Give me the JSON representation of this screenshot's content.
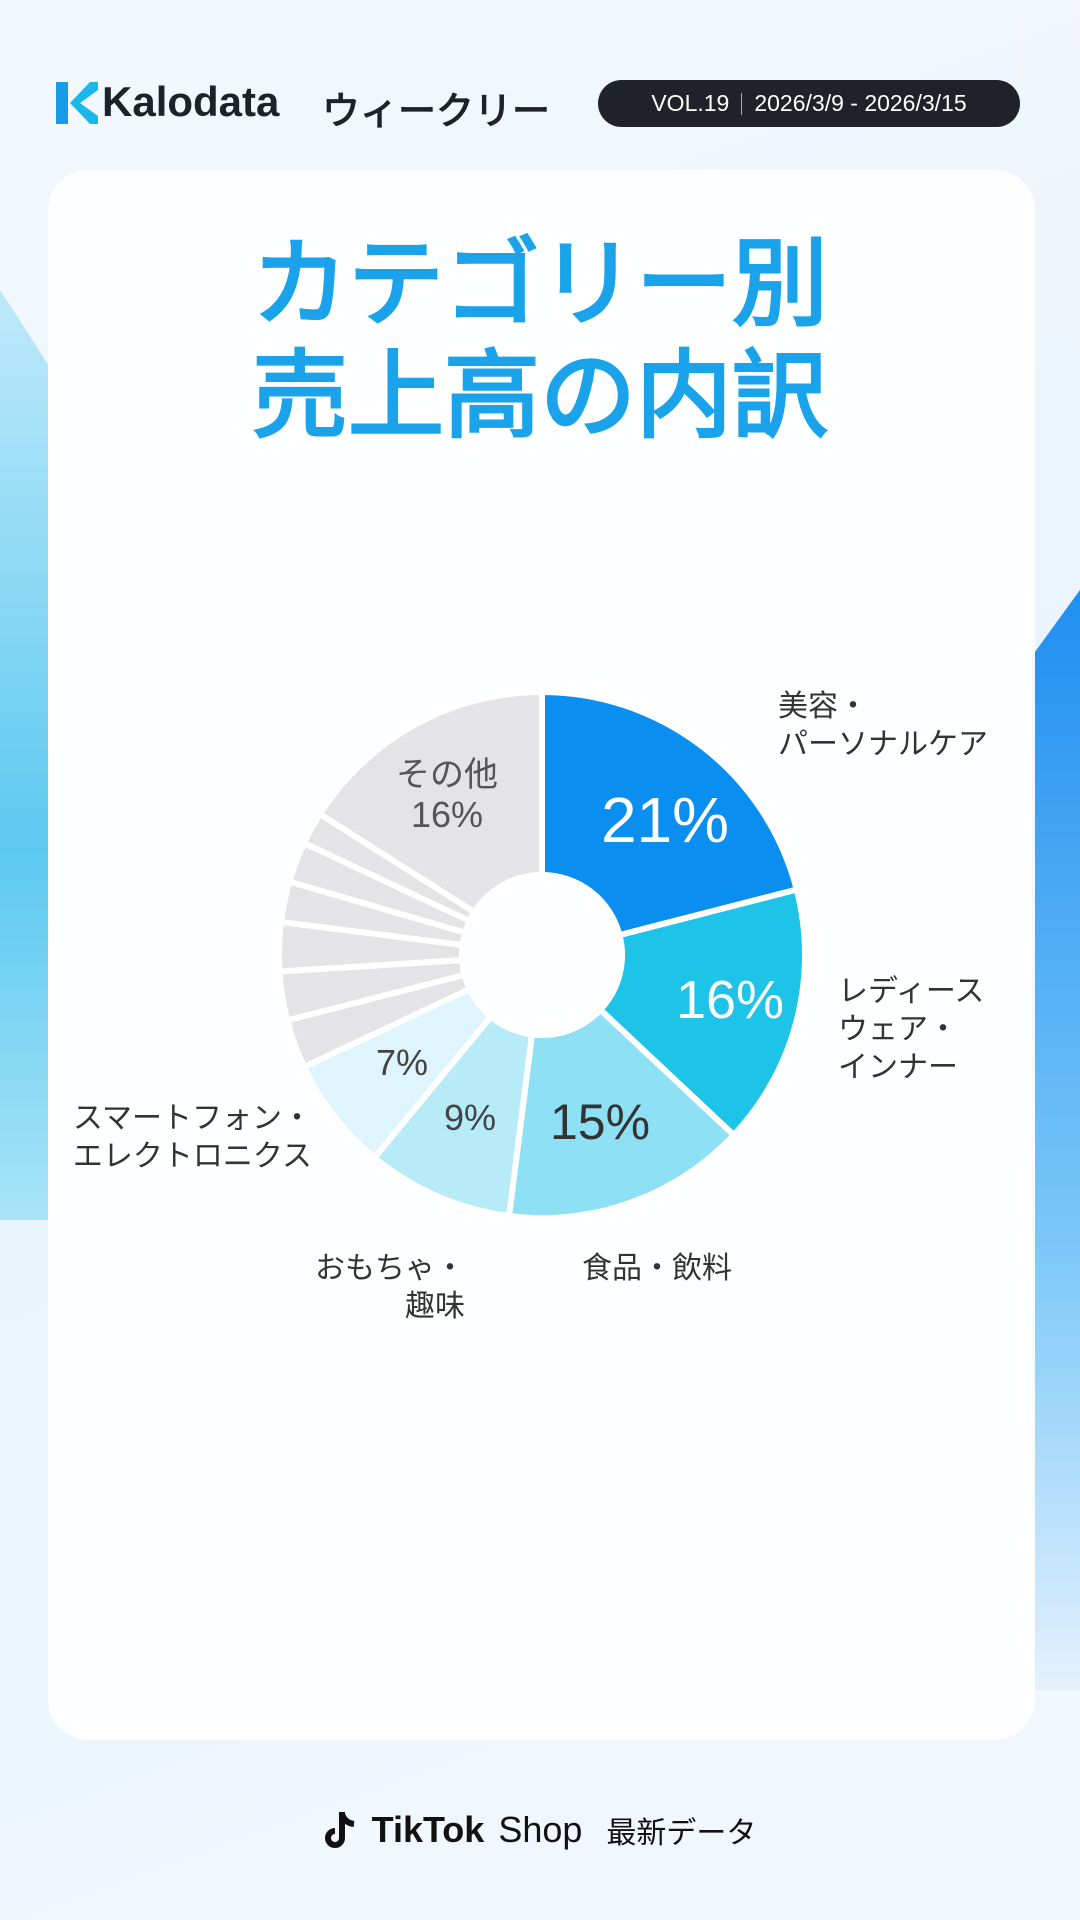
{
  "header": {
    "brand": "Kalodata",
    "series_name": "ウィークリー",
    "volume": "VOL.19",
    "period": "2026/3/9 - 2026/3/15"
  },
  "chart_data": {
    "type": "pie",
    "donut": true,
    "title": "カテゴリー別\n売上高の内訳",
    "categories": [
      "美容・\nパーソナルケア",
      "レディース\nウェア・\nインナー",
      "食品・飲料",
      "おもちゃ・\n趣味",
      "スマートフォン・\nエレクトロニクス",
      null,
      null,
      null,
      null,
      null,
      null,
      "その他"
    ],
    "values": [
      21,
      16,
      15,
      9,
      7,
      3,
      3,
      3,
      2.5,
      2.5,
      2,
      16
    ],
    "value_labels": [
      "21%",
      "16%",
      "15%",
      "9%",
      "7%",
      null,
      null,
      null,
      null,
      null,
      null,
      "16%"
    ],
    "colors": [
      "#0a8ff0",
      "#1ec3e8",
      "#8ee0f5",
      "#b8ebf8",
      "#dff5fd",
      "#e4e3e6",
      "#e4e3e6",
      "#e4e3e6",
      "#e4e3e6",
      "#e4e3e6",
      "#e4e3e6",
      "#e4e3e6"
    ]
  },
  "footer": {
    "brand": "TikTok",
    "shop": "Shop",
    "note": "最新データ"
  }
}
